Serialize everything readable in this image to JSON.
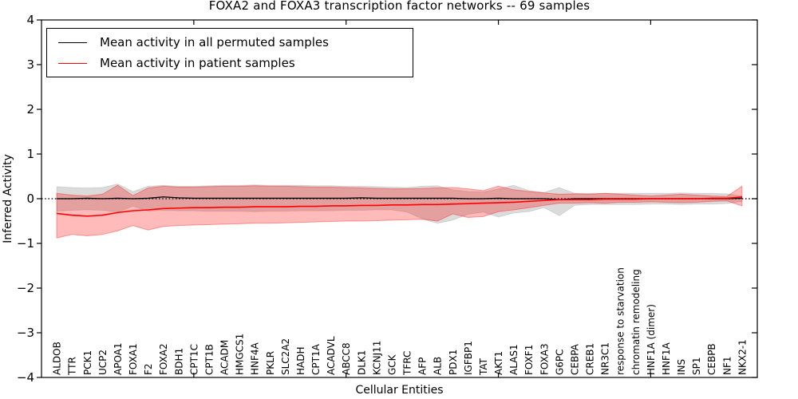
{
  "figure": {
    "title": "FOXA2 and FOXA3 transcription factor networks -- 69 samples",
    "xlabel": "Cellular Entities",
    "ylabel": "Inferred Activity"
  },
  "legend": {
    "items": [
      {
        "label": "Mean activity in all permuted samples",
        "color": "#000000"
      },
      {
        "label": "Mean activity in patient samples",
        "color": "#ff0000"
      }
    ]
  },
  "chart_data": {
    "type": "line",
    "title": "FOXA2 and FOXA3 transcription factor networks -- 69 samples",
    "xlabel": "Cellular Entities",
    "ylabel": "Inferred Activity",
    "ylim": [
      -4,
      4
    ],
    "yticks": [
      4,
      3,
      2,
      1,
      0,
      -1,
      -2,
      -3,
      -4
    ],
    "x_major_tick_every": 10,
    "grid": false,
    "legend_position": "upper left",
    "zero_line": {
      "show": true,
      "style": "dotted",
      "color": "#000000",
      "y": 0
    },
    "categories": [
      "ALDOB",
      "TTR",
      "PCK1",
      "UCP2",
      "APOA1",
      "FOXA1",
      "F2",
      "FOXA2",
      "BDH1",
      "CPT1C",
      "CPT1B",
      "ACADM",
      "HMGCS1",
      "HNF4A",
      "PKLR",
      "SLC2A2",
      "HADH",
      "CPT1A",
      "ACADVL",
      "ABCC8",
      "DLK1",
      "KCNJ11",
      "GCK",
      "TFRC",
      "AFP",
      "ALB",
      "PDX1",
      "IGFBP1",
      "TAT",
      "AKT1",
      "ALAS1",
      "FOXF1",
      "FOXA3",
      "G6PC",
      "CEBPA",
      "CREB1",
      "NR3C1",
      "response to starvation",
      "chromatin remodeling",
      "HNF1A (dimer)",
      "HNF1A",
      "INS",
      "SP1",
      "CEBPB",
      "NF1",
      "NKX2-1"
    ],
    "series": [
      {
        "name": "Mean activity in all permuted samples",
        "color": "#000000",
        "width": 1.3,
        "values": [
          0.0,
          0.0,
          0.01,
          0.0,
          0.01,
          0.0,
          0.01,
          0.04,
          0.02,
          0.01,
          0.01,
          0.01,
          0.01,
          0.01,
          0.01,
          0.01,
          0.01,
          0.01,
          0.01,
          0.01,
          0.02,
          0.01,
          0.01,
          0.01,
          0.01,
          0.01,
          0.01,
          0.0,
          0.0,
          0.01,
          0.0,
          0.0,
          0.0,
          -0.02,
          0.0,
          0.0,
          0.0,
          0.0,
          0.0,
          0.0,
          0.0,
          0.0,
          0.0,
          0.0,
          0.0,
          0.01
        ]
      },
      {
        "name": "Mean activity in patient samples",
        "color": "#ff0000",
        "width": 1.6,
        "values": [
          -0.33,
          -0.37,
          -0.39,
          -0.37,
          -0.31,
          -0.27,
          -0.25,
          -0.22,
          -0.21,
          -0.2,
          -0.2,
          -0.19,
          -0.19,
          -0.18,
          -0.18,
          -0.18,
          -0.17,
          -0.17,
          -0.16,
          -0.16,
          -0.15,
          -0.15,
          -0.14,
          -0.14,
          -0.13,
          -0.13,
          -0.12,
          -0.11,
          -0.1,
          -0.09,
          -0.08,
          -0.06,
          -0.04,
          -0.02,
          -0.02,
          -0.02,
          -0.01,
          -0.01,
          -0.01,
          0.0,
          0.0,
          0.0,
          0.0,
          0.01,
          0.01,
          0.04
        ]
      }
    ],
    "bands": [
      {
        "name": "permuted-samples-std-band",
        "fill": "rgba(0,0,0,0.14)",
        "edge": "rgba(0,0,0,0.10)",
        "upper": [
          0.27,
          0.25,
          0.24,
          0.25,
          0.33,
          0.16,
          0.28,
          0.3,
          0.28,
          0.28,
          0.29,
          0.3,
          0.3,
          0.31,
          0.3,
          0.3,
          0.3,
          0.29,
          0.29,
          0.28,
          0.28,
          0.27,
          0.26,
          0.25,
          0.28,
          0.29,
          0.2,
          0.16,
          0.15,
          0.22,
          0.3,
          0.18,
          0.14,
          0.25,
          0.12,
          0.12,
          0.12,
          0.12,
          0.12,
          0.12,
          0.12,
          0.13,
          0.12,
          0.12,
          0.11,
          0.06
        ],
        "lower": [
          -0.28,
          -0.26,
          -0.25,
          -0.26,
          -0.3,
          -0.17,
          -0.28,
          -0.26,
          -0.27,
          -0.27,
          -0.28,
          -0.28,
          -0.28,
          -0.29,
          -0.28,
          -0.28,
          -0.27,
          -0.27,
          -0.27,
          -0.26,
          -0.26,
          -0.25,
          -0.25,
          -0.3,
          -0.45,
          -0.55,
          -0.48,
          -0.35,
          -0.3,
          -0.41,
          -0.32,
          -0.29,
          -0.2,
          -0.38,
          -0.15,
          -0.13,
          -0.13,
          -0.13,
          -0.13,
          -0.12,
          -0.12,
          -0.13,
          -0.12,
          -0.12,
          -0.11,
          -0.06
        ]
      },
      {
        "name": "patient-samples-std-band",
        "fill": "rgba(255,0,0,0.27)",
        "edge": "rgba(255,0,0,0.35)",
        "upper": [
          0.12,
          0.08,
          0.06,
          0.1,
          0.3,
          0.07,
          0.24,
          0.28,
          0.26,
          0.26,
          0.27,
          0.28,
          0.28,
          0.29,
          0.28,
          0.28,
          0.27,
          0.26,
          0.26,
          0.25,
          0.24,
          0.23,
          0.22,
          0.22,
          0.23,
          0.24,
          0.25,
          0.22,
          0.18,
          0.28,
          0.2,
          0.16,
          0.13,
          0.1,
          0.11,
          0.1,
          0.12,
          0.1,
          0.08,
          0.06,
          0.08,
          0.1,
          0.08,
          0.06,
          0.05,
          0.28
        ],
        "lower": [
          -0.88,
          -0.8,
          -0.83,
          -0.8,
          -0.72,
          -0.6,
          -0.7,
          -0.62,
          -0.6,
          -0.59,
          -0.58,
          -0.57,
          -0.56,
          -0.55,
          -0.55,
          -0.54,
          -0.53,
          -0.52,
          -0.51,
          -0.5,
          -0.5,
          -0.49,
          -0.48,
          -0.47,
          -0.46,
          -0.5,
          -0.34,
          -0.42,
          -0.4,
          -0.29,
          -0.25,
          -0.2,
          -0.15,
          -0.1,
          -0.1,
          -0.09,
          -0.1,
          -0.08,
          -0.08,
          -0.07,
          -0.08,
          -0.09,
          -0.08,
          -0.06,
          -0.05,
          -0.16
        ]
      }
    ]
  }
}
